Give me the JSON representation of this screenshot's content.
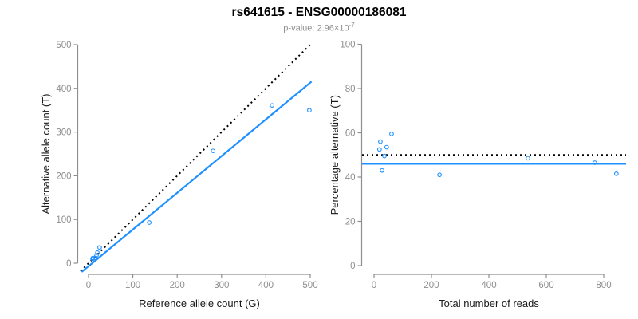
{
  "header": {
    "title": "rs641615 - ENSG00000186081",
    "subtitle_prefix": "p-value: 2.96×10",
    "subtitle_exponent": "-7"
  },
  "colors": {
    "accent_blue": "#1E90FF",
    "reference_line_black": "#000000",
    "axis_gray": "#8E8E8E",
    "tick_label_gray": "#8E8E8E",
    "axis_title_color": "#1A1A1A",
    "subtitle_gray": "#8E8E8E",
    "background": "#FFFFFF"
  },
  "chart_data": [
    {
      "type": "scatter",
      "name": "allele-counts-panel",
      "title": "",
      "xlabel": "Reference allele count (G)",
      "ylabel": "Alternative allele count (T)",
      "xlim": [
        0,
        500
      ],
      "ylim": [
        0,
        500
      ],
      "xticks": [
        0,
        100,
        200,
        300,
        400,
        500
      ],
      "yticks": [
        0,
        100,
        200,
        300,
        400,
        500
      ],
      "grid": false,
      "legend": false,
      "points": [
        [
          9,
          10
        ],
        [
          10,
          12
        ],
        [
          16,
          12
        ],
        [
          18,
          18
        ],
        [
          20,
          24
        ],
        [
          25,
          36
        ],
        [
          137,
          93
        ],
        [
          281,
          257
        ],
        [
          414,
          361
        ],
        [
          498,
          350
        ]
      ],
      "lines": [
        {
          "name": "expected-identity-line",
          "style": "dotted",
          "color": "#000000",
          "slope": 1,
          "intercept": 0
        },
        {
          "name": "fitted-regression-line",
          "style": "solid",
          "color": "#1E90FF",
          "slope": 0.84,
          "intercept": -7
        }
      ]
    },
    {
      "type": "scatter",
      "name": "percentage-panel",
      "title": "",
      "xlabel": "Total number of reads",
      "ylabel": "Percentage alternative (T)",
      "xlim": [
        0,
        850
      ],
      "ylim": [
        0,
        100
      ],
      "xticks": [
        0,
        200,
        400,
        600,
        800
      ],
      "yticks": [
        0,
        20,
        40,
        60,
        80,
        100
      ],
      "grid": false,
      "legend": false,
      "points": [
        [
          19,
          52.5
        ],
        [
          22,
          56
        ],
        [
          28,
          43
        ],
        [
          36,
          49.5
        ],
        [
          44,
          53.5
        ],
        [
          61,
          59.5
        ],
        [
          228,
          41
        ],
        [
          536,
          48.5
        ],
        [
          769,
          46.5
        ],
        [
          844,
          41.5
        ]
      ],
      "lines": [
        {
          "name": "expected-50pct-line",
          "style": "dotted",
          "color": "#000000",
          "hline": 50
        },
        {
          "name": "fitted-mean-line",
          "style": "solid",
          "color": "#1E90FF",
          "hline": 46
        }
      ]
    }
  ]
}
